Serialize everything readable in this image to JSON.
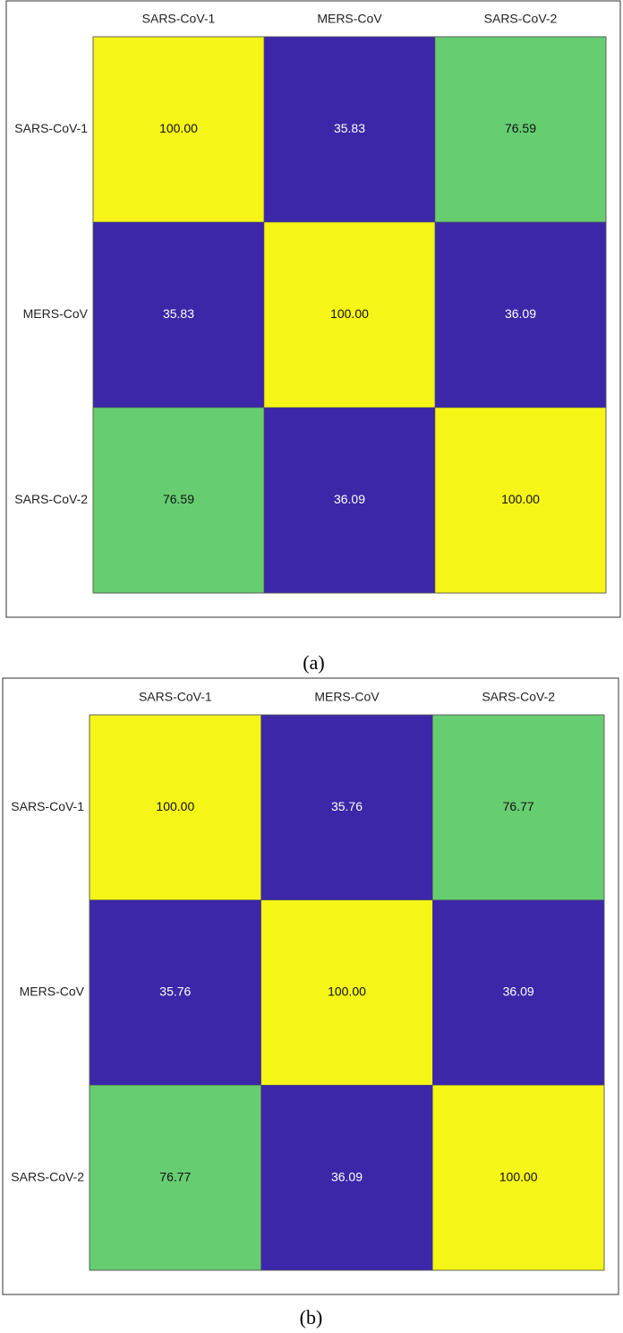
{
  "chart_data": [
    {
      "type": "heatmap",
      "caption": "(a)",
      "x_categories": [
        "SARS-CoV-1",
        "MERS-CoV",
        "SARS-CoV-2"
      ],
      "y_categories": [
        "SARS-CoV-1",
        "MERS-CoV",
        "SARS-CoV-2"
      ],
      "values": [
        [
          100,
          35.83,
          76.59
        ],
        [
          35.83,
          100,
          36.09
        ],
        [
          76.59,
          36.09,
          100
        ]
      ],
      "value_labels": [
        [
          "100.00",
          "35.83",
          "76.59"
        ],
        [
          "35.83",
          "100.00",
          "36.09"
        ],
        [
          "76.59",
          "36.09",
          "100.00"
        ]
      ],
      "cell_colors": [
        [
          "#f5f518",
          "#3b27a8",
          "#66cd71"
        ],
        [
          "#3b27a8",
          "#f5f518",
          "#3b27a8"
        ],
        [
          "#66cd71",
          "#3b27a8",
          "#f5f518"
        ]
      ]
    },
    {
      "type": "heatmap",
      "caption": "(b)",
      "x_categories": [
        "SARS-CoV-1",
        "MERS-CoV",
        "SARS-CoV-2"
      ],
      "y_categories": [
        "SARS-CoV-1",
        "MERS-CoV",
        "SARS-CoV-2"
      ],
      "values": [
        [
          100,
          35.76,
          76.77
        ],
        [
          35.76,
          100,
          36.09
        ],
        [
          76.77,
          36.09,
          100
        ]
      ],
      "value_labels": [
        [
          "100.00",
          "35.76",
          "76.77"
        ],
        [
          "35.76",
          "100.00",
          "36.09"
        ],
        [
          "76.77",
          "36.09",
          "100.00"
        ]
      ],
      "cell_colors": [
        [
          "#f5f518",
          "#3b27a8",
          "#66cd71"
        ],
        [
          "#3b27a8",
          "#f5f518",
          "#3b27a8"
        ],
        [
          "#66cd71",
          "#3b27a8",
          "#f5f518"
        ]
      ]
    }
  ]
}
